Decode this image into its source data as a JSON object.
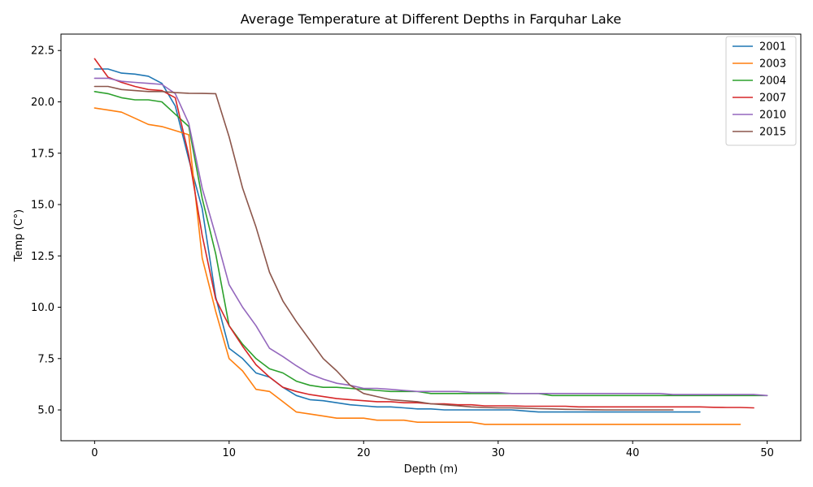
{
  "chart_data": {
    "type": "line",
    "title": "Average Temperature at Different Depths in Farquhar Lake",
    "xlabel": "Depth (m)",
    "ylabel": "Temp (C°)",
    "xlim": [
      -2.5,
      52.5
    ],
    "ylim": [
      3.5,
      23.3
    ],
    "xticks": [
      0,
      10,
      20,
      30,
      40,
      50
    ],
    "yticks": [
      5.0,
      7.5,
      10.0,
      12.5,
      15.0,
      17.5,
      20.0,
      22.5
    ],
    "xtick_labels": [
      "0",
      "10",
      "20",
      "30",
      "40",
      "50"
    ],
    "ytick_labels": [
      "5.0",
      "7.5",
      "10.0",
      "12.5",
      "15.0",
      "17.5",
      "20.0",
      "22.5"
    ],
    "grid": false,
    "legend_position": "top-right",
    "series": [
      {
        "name": "2001",
        "color": "#1f77b4",
        "x": [
          0,
          1,
          2,
          3,
          4,
          5,
          6,
          7,
          8,
          9,
          10,
          11,
          12,
          13,
          14,
          15,
          16,
          17,
          18,
          19,
          20,
          21,
          22,
          23,
          24,
          25,
          26,
          27,
          28,
          29,
          30,
          31,
          32,
          33,
          34,
          35,
          36,
          37,
          38,
          39,
          40,
          41,
          42,
          43,
          44,
          45
        ],
        "y": [
          21.6,
          21.6,
          21.4,
          21.35,
          21.25,
          20.9,
          19.8,
          17.2,
          14.8,
          10.5,
          8.0,
          7.5,
          6.8,
          6.6,
          6.1,
          5.7,
          5.5,
          5.45,
          5.35,
          5.25,
          5.2,
          5.15,
          5.15,
          5.1,
          5.05,
          5.05,
          5.0,
          5.0,
          5.0,
          5.0,
          5.0,
          5.0,
          4.95,
          4.9,
          4.9,
          4.9,
          4.9,
          4.9,
          4.9,
          4.9,
          4.9,
          4.9,
          4.9,
          4.9,
          4.9,
          4.9
        ]
      },
      {
        "name": "2003",
        "color": "#ff7f0e",
        "x": [
          0,
          1,
          2,
          3,
          4,
          5,
          6,
          7,
          8,
          9,
          10,
          11,
          12,
          13,
          14,
          15,
          16,
          17,
          18,
          19,
          20,
          21,
          22,
          23,
          24,
          25,
          26,
          27,
          28,
          29,
          30,
          31,
          32,
          33,
          34,
          35,
          36,
          37,
          38,
          39,
          40,
          41,
          42,
          43,
          44,
          45,
          46,
          47,
          48
        ],
        "y": [
          19.7,
          19.6,
          19.5,
          19.2,
          18.9,
          18.8,
          18.6,
          18.4,
          12.4,
          9.8,
          7.5,
          6.9,
          6.0,
          5.9,
          5.4,
          4.9,
          4.8,
          4.7,
          4.6,
          4.6,
          4.6,
          4.5,
          4.5,
          4.5,
          4.4,
          4.4,
          4.4,
          4.4,
          4.4,
          4.3,
          4.3,
          4.3,
          4.3,
          4.3,
          4.3,
          4.3,
          4.3,
          4.3,
          4.3,
          4.3,
          4.3,
          4.3,
          4.3,
          4.3,
          4.3,
          4.3,
          4.3,
          4.3,
          4.3
        ]
      },
      {
        "name": "2004",
        "color": "#2ca02c",
        "x": [
          0,
          1,
          2,
          3,
          4,
          5,
          6,
          7,
          8,
          9,
          10,
          11,
          12,
          13,
          14,
          15,
          16,
          17,
          18,
          19,
          20,
          21,
          22,
          23,
          24,
          25,
          26,
          27,
          28,
          29,
          30,
          31,
          32,
          33,
          34,
          35,
          36,
          37,
          38,
          39,
          40,
          41,
          42,
          43,
          44,
          45,
          46,
          47,
          48,
          49,
          50
        ],
        "y": [
          20.5,
          20.4,
          20.2,
          20.1,
          20.1,
          20.0,
          19.4,
          18.8,
          15.3,
          12.6,
          9.1,
          8.2,
          7.5,
          7.0,
          6.8,
          6.4,
          6.2,
          6.1,
          6.1,
          6.05,
          6.0,
          5.95,
          5.9,
          5.9,
          5.9,
          5.8,
          5.8,
          5.8,
          5.8,
          5.8,
          5.8,
          5.8,
          5.8,
          5.8,
          5.7,
          5.7,
          5.7,
          5.7,
          5.7,
          5.7,
          5.7,
          5.7,
          5.7,
          5.7,
          5.7,
          5.7,
          5.7,
          5.7,
          5.7,
          5.7,
          5.7
        ]
      },
      {
        "name": "2007",
        "color": "#d62728",
        "x": [
          0,
          1,
          2,
          3,
          4,
          5,
          6,
          7,
          8,
          9,
          10,
          11,
          12,
          13,
          14,
          15,
          16,
          17,
          18,
          19,
          20,
          21,
          22,
          23,
          24,
          25,
          26,
          27,
          28,
          29,
          30,
          31,
          32,
          33,
          34,
          35,
          36,
          37,
          38,
          39,
          40,
          41,
          42,
          43,
          44,
          45,
          46,
          47,
          48,
          49
        ],
        "y": [
          22.1,
          21.2,
          20.95,
          20.75,
          20.6,
          20.55,
          20.2,
          17.4,
          13.5,
          10.4,
          9.1,
          8.1,
          7.2,
          6.6,
          6.1,
          5.9,
          5.75,
          5.65,
          5.55,
          5.5,
          5.45,
          5.4,
          5.4,
          5.35,
          5.35,
          5.3,
          5.3,
          5.25,
          5.25,
          5.2,
          5.2,
          5.2,
          5.18,
          5.18,
          5.18,
          5.18,
          5.15,
          5.15,
          5.15,
          5.15,
          5.15,
          5.15,
          5.15,
          5.15,
          5.15,
          5.15,
          5.13,
          5.12,
          5.12,
          5.1
        ]
      },
      {
        "name": "2010",
        "color": "#9467bd",
        "x": [
          0,
          1,
          2,
          3,
          4,
          5,
          6,
          7,
          8,
          9,
          10,
          11,
          12,
          13,
          14,
          15,
          16,
          17,
          18,
          19,
          20,
          21,
          22,
          23,
          24,
          25,
          26,
          27,
          28,
          29,
          30,
          31,
          32,
          33,
          34,
          35,
          36,
          37,
          38,
          39,
          40,
          41,
          42,
          43,
          44,
          45,
          46,
          47,
          48,
          49,
          50
        ],
        "y": [
          21.15,
          21.15,
          21.0,
          20.95,
          20.9,
          20.85,
          20.4,
          18.95,
          15.8,
          13.5,
          11.1,
          10.0,
          9.1,
          8.0,
          7.6,
          7.15,
          6.75,
          6.5,
          6.3,
          6.2,
          6.05,
          6.05,
          6.0,
          5.95,
          5.9,
          5.9,
          5.9,
          5.9,
          5.85,
          5.85,
          5.85,
          5.8,
          5.8,
          5.8,
          5.8,
          5.8,
          5.8,
          5.8,
          5.8,
          5.8,
          5.8,
          5.8,
          5.8,
          5.75,
          5.75,
          5.75,
          5.75,
          5.75,
          5.75,
          5.75,
          5.7
        ]
      },
      {
        "name": "2015",
        "color": "#8c564b",
        "x": [
          0,
          1,
          2,
          3,
          4,
          5,
          6,
          7,
          8,
          9,
          10,
          11,
          12,
          13,
          14,
          15,
          16,
          17,
          18,
          19,
          20,
          21,
          22,
          23,
          24,
          25,
          26,
          27,
          28,
          29,
          30,
          31,
          32,
          33,
          34,
          35,
          36,
          37,
          38,
          39,
          40,
          41,
          42,
          43
        ],
        "y": [
          20.75,
          20.75,
          20.6,
          20.55,
          20.5,
          20.5,
          20.45,
          20.42,
          20.41,
          20.4,
          18.3,
          15.8,
          13.9,
          11.7,
          10.3,
          9.3,
          8.4,
          7.5,
          6.9,
          6.2,
          5.8,
          5.65,
          5.5,
          5.45,
          5.4,
          5.3,
          5.25,
          5.2,
          5.15,
          5.12,
          5.1,
          5.1,
          5.08,
          5.06,
          5.05,
          5.03,
          5.02,
          5.01,
          5.0,
          5.0,
          5.0,
          5.0,
          5.0,
          5.0
        ]
      }
    ]
  }
}
